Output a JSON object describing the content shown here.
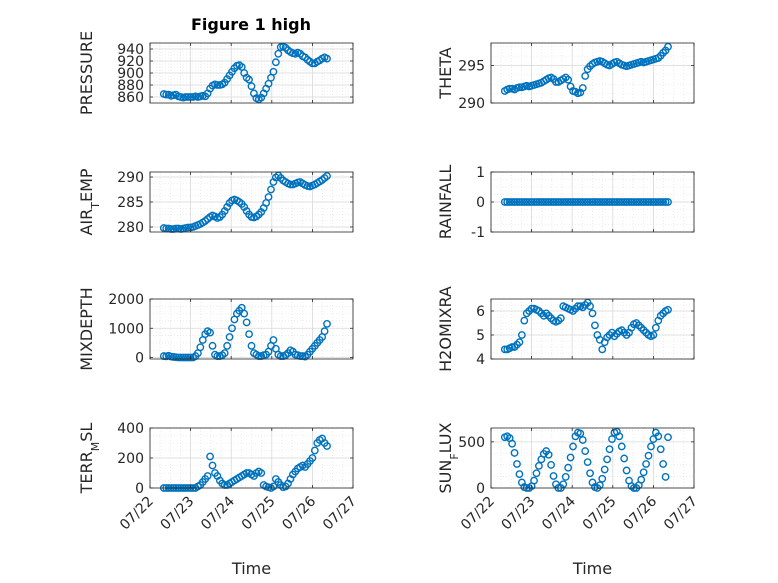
{
  "figure": {
    "title": "Figure 1 high",
    "marker_color": "#0072BD",
    "axis_color": "#262626",
    "grid_color": "#dfdfdf",
    "grid": true,
    "minor_grid": true
  },
  "chart_data": [
    {
      "type": "scatter",
      "name": "pressure",
      "ylabel": "PRESSURE",
      "ylim": [
        850,
        950
      ],
      "yticks": [
        860,
        880,
        900,
        920,
        940
      ],
      "title": "Figure 1 high",
      "xlim": [
        "07/22",
        "07/27"
      ],
      "xticks": [],
      "xlabel": "",
      "x": [
        0.34,
        0.4,
        0.46,
        0.52,
        0.58,
        0.64,
        0.7,
        0.76,
        0.82,
        0.88,
        0.94,
        1.0,
        1.06,
        1.12,
        1.18,
        1.24,
        1.3,
        1.36,
        1.42,
        1.48,
        1.54,
        1.6,
        1.66,
        1.72,
        1.78,
        1.84,
        1.9,
        1.96,
        2.02,
        2.08,
        2.14,
        2.2,
        2.26,
        2.32,
        2.38,
        2.44,
        2.5,
        2.56,
        2.62,
        2.68,
        2.74,
        2.8,
        2.86,
        2.92,
        2.98,
        3.04,
        3.1,
        3.16,
        3.22,
        3.28,
        3.34,
        3.4,
        3.46,
        3.52,
        3.58,
        3.64,
        3.7,
        3.76,
        3.82,
        3.88,
        3.94,
        4.0,
        4.06,
        4.12,
        4.18,
        4.24,
        4.3,
        4.36
      ],
      "y": [
        865,
        864,
        864,
        862,
        863,
        864,
        861,
        860,
        859,
        860,
        860,
        860,
        860,
        861,
        860,
        861,
        862,
        861,
        866,
        874,
        879,
        881,
        880,
        880,
        881,
        884,
        890,
        896,
        902,
        908,
        912,
        913,
        910,
        900,
        892,
        889,
        878,
        866,
        858,
        856,
        859,
        866,
        874,
        882,
        892,
        902,
        918,
        932,
        943,
        944,
        942,
        938,
        935,
        933,
        932,
        934,
        932,
        928,
        926,
        922,
        919,
        916,
        916,
        919,
        921,
        924,
        926,
        924
      ]
    },
    {
      "type": "scatter",
      "name": "theta",
      "ylabel": "THETA",
      "ylim": [
        290,
        298
      ],
      "yticks": [
        290,
        295
      ],
      "xlim": [
        "07/22",
        "07/27"
      ],
      "xticks": [],
      "xlabel": "",
      "x": [
        0.34,
        0.4,
        0.46,
        0.52,
        0.58,
        0.64,
        0.7,
        0.76,
        0.82,
        0.88,
        0.94,
        1.0,
        1.06,
        1.12,
        1.18,
        1.24,
        1.3,
        1.36,
        1.42,
        1.48,
        1.54,
        1.6,
        1.66,
        1.72,
        1.78,
        1.84,
        1.9,
        1.96,
        2.02,
        2.08,
        2.14,
        2.2,
        2.26,
        2.32,
        2.38,
        2.44,
        2.5,
        2.56,
        2.62,
        2.68,
        2.74,
        2.8,
        2.86,
        2.92,
        2.98,
        3.04,
        3.1,
        3.16,
        3.22,
        3.28,
        3.34,
        3.4,
        3.46,
        3.52,
        3.58,
        3.64,
        3.7,
        3.76,
        3.82,
        3.88,
        3.94,
        4.0,
        4.06,
        4.12,
        4.18,
        4.24,
        4.3,
        4.36
      ],
      "y": [
        291.6,
        291.8,
        291.9,
        291.9,
        291.8,
        292.0,
        292.1,
        292.1,
        292.2,
        292.3,
        292.2,
        292.3,
        292.4,
        292.5,
        292.6,
        292.7,
        292.9,
        293.1,
        293.3,
        293.4,
        293.2,
        292.8,
        292.8,
        293.0,
        293.2,
        293.4,
        293.1,
        292.2,
        291.6,
        291.5,
        291.3,
        291.4,
        292.0,
        293.6,
        294.5,
        294.9,
        295.2,
        295.4,
        295.5,
        295.6,
        295.5,
        295.3,
        295.1,
        295.0,
        295.2,
        295.4,
        295.5,
        295.3,
        295.1,
        295.0,
        294.9,
        295.0,
        295.1,
        295.2,
        295.3,
        295.4,
        295.5,
        295.4,
        295.5,
        295.6,
        295.7,
        295.8,
        295.9,
        296.0,
        296.3,
        296.7,
        297.0,
        297.5
      ]
    },
    {
      "type": "scatter",
      "name": "air_temp",
      "ylabel": "AIR_TEMP",
      "ylim": [
        279,
        291
      ],
      "yticks": [
        280,
        285,
        290
      ],
      "xlim": [
        "07/22",
        "07/27"
      ],
      "xticks": [],
      "xlabel": "",
      "x": [
        0.34,
        0.4,
        0.46,
        0.52,
        0.58,
        0.64,
        0.7,
        0.76,
        0.82,
        0.88,
        0.94,
        1.0,
        1.06,
        1.12,
        1.18,
        1.24,
        1.3,
        1.36,
        1.42,
        1.48,
        1.54,
        1.6,
        1.66,
        1.72,
        1.78,
        1.84,
        1.9,
        1.96,
        2.02,
        2.08,
        2.14,
        2.2,
        2.26,
        2.32,
        2.38,
        2.44,
        2.5,
        2.56,
        2.62,
        2.68,
        2.74,
        2.8,
        2.86,
        2.92,
        2.98,
        3.04,
        3.1,
        3.16,
        3.22,
        3.28,
        3.34,
        3.4,
        3.46,
        3.52,
        3.58,
        3.64,
        3.7,
        3.76,
        3.82,
        3.88,
        3.94,
        4.0,
        4.06,
        4.12,
        4.18,
        4.24,
        4.3,
        4.36
      ],
      "y": [
        279.8,
        279.7,
        279.7,
        279.6,
        279.6,
        279.7,
        279.7,
        279.6,
        279.7,
        279.8,
        279.9,
        279.9,
        280.0,
        280.2,
        280.4,
        280.6,
        280.9,
        281.2,
        281.6,
        282.0,
        282.3,
        282.1,
        281.8,
        282.0,
        282.5,
        283.2,
        284.0,
        284.8,
        285.3,
        285.5,
        285.3,
        285.0,
        284.6,
        284.0,
        283.2,
        282.5,
        282.0,
        281.9,
        282.1,
        282.5,
        283.0,
        283.8,
        284.8,
        286.0,
        287.5,
        289.0,
        289.9,
        290.3,
        289.8,
        289.3,
        289.0,
        288.7,
        288.5,
        288.5,
        288.7,
        288.9,
        289.0,
        288.7,
        288.4,
        288.2,
        288.1,
        288.3,
        288.5,
        288.8,
        289.1,
        289.4,
        289.8,
        290.2
      ]
    },
    {
      "type": "scatter",
      "name": "rainfall",
      "ylabel": "RAINFALL",
      "ylim": [
        -1,
        1
      ],
      "yticks": [
        -1,
        0,
        1
      ],
      "xlim": [
        "07/22",
        "07/27"
      ],
      "xticks": [],
      "xlabel": "",
      "x": [
        0.34,
        0.4,
        0.46,
        0.52,
        0.58,
        0.64,
        0.7,
        0.76,
        0.82,
        0.88,
        0.94,
        1.0,
        1.06,
        1.12,
        1.18,
        1.24,
        1.3,
        1.36,
        1.42,
        1.48,
        1.54,
        1.6,
        1.66,
        1.72,
        1.78,
        1.84,
        1.9,
        1.96,
        2.02,
        2.08,
        2.14,
        2.2,
        2.26,
        2.32,
        2.38,
        2.44,
        2.5,
        2.56,
        2.62,
        2.68,
        2.74,
        2.8,
        2.86,
        2.92,
        2.98,
        3.04,
        3.1,
        3.16,
        3.22,
        3.28,
        3.34,
        3.4,
        3.46,
        3.52,
        3.58,
        3.64,
        3.7,
        3.76,
        3.82,
        3.88,
        3.94,
        4.0,
        4.06,
        4.12,
        4.18,
        4.24,
        4.3,
        4.36
      ],
      "y": [
        0,
        0,
        0,
        0,
        0,
        0,
        0,
        0,
        0,
        0,
        0,
        0,
        0,
        0,
        0,
        0,
        0,
        0,
        0,
        0,
        0,
        0,
        0,
        0,
        0,
        0,
        0,
        0,
        0,
        0,
        0,
        0,
        0,
        0,
        0,
        0,
        0,
        0,
        0,
        0,
        0,
        0,
        0,
        0,
        0,
        0,
        0,
        0,
        0,
        0,
        0,
        0,
        0,
        0,
        0,
        0,
        0,
        0,
        0,
        0,
        0,
        0,
        0,
        0,
        0,
        0,
        0,
        0
      ]
    },
    {
      "type": "scatter",
      "name": "mixdepth",
      "ylabel": "MIXDEPTH",
      "ylim": [
        -50,
        2000
      ],
      "yticks": [
        0,
        1000,
        2000
      ],
      "xlim": [
        "07/22",
        "07/27"
      ],
      "xticks": [],
      "xlabel": "",
      "x": [
        0.34,
        0.4,
        0.46,
        0.52,
        0.58,
        0.64,
        0.7,
        0.76,
        0.82,
        0.88,
        0.94,
        1.0,
        1.06,
        1.12,
        1.18,
        1.24,
        1.3,
        1.36,
        1.42,
        1.48,
        1.54,
        1.6,
        1.66,
        1.72,
        1.78,
        1.84,
        1.9,
        1.96,
        2.02,
        2.08,
        2.14,
        2.2,
        2.26,
        2.32,
        2.38,
        2.44,
        2.5,
        2.56,
        2.62,
        2.68,
        2.74,
        2.8,
        2.86,
        2.92,
        2.98,
        3.04,
        3.1,
        3.16,
        3.22,
        3.28,
        3.34,
        3.4,
        3.46,
        3.52,
        3.58,
        3.64,
        3.7,
        3.76,
        3.82,
        3.88,
        3.94,
        4.0,
        4.06,
        4.12,
        4.18,
        4.24,
        4.3,
        4.36
      ],
      "y": [
        50,
        40,
        60,
        30,
        20,
        10,
        0,
        0,
        0,
        0,
        0,
        0,
        0,
        50,
        150,
        350,
        600,
        800,
        900,
        850,
        400,
        100,
        50,
        50,
        80,
        150,
        400,
        700,
        1000,
        1300,
        1500,
        1600,
        1700,
        1500,
        1200,
        800,
        400,
        150,
        100,
        50,
        50,
        80,
        100,
        200,
        400,
        600,
        300,
        100,
        50,
        50,
        80,
        150,
        250,
        200,
        100,
        80,
        50,
        50,
        30,
        100,
        200,
        300,
        400,
        500,
        600,
        700,
        900,
        1150
      ]
    },
    {
      "type": "scatter",
      "name": "h2omixra",
      "ylabel": "H2OMIXRA",
      "ylim": [
        4,
        6.5
      ],
      "yticks": [
        4,
        5,
        6
      ],
      "xlim": [
        "07/22",
        "07/27"
      ],
      "xticks": [],
      "xlabel": "",
      "x": [
        0.34,
        0.4,
        0.46,
        0.52,
        0.58,
        0.64,
        0.7,
        0.76,
        0.82,
        0.88,
        0.94,
        1.0,
        1.06,
        1.12,
        1.18,
        1.24,
        1.3,
        1.36,
        1.42,
        1.48,
        1.54,
        1.6,
        1.66,
        1.72,
        1.78,
        1.84,
        1.9,
        1.96,
        2.02,
        2.08,
        2.14,
        2.2,
        2.26,
        2.32,
        2.38,
        2.44,
        2.5,
        2.56,
        2.62,
        2.68,
        2.74,
        2.8,
        2.86,
        2.92,
        2.98,
        3.04,
        3.1,
        3.16,
        3.22,
        3.28,
        3.34,
        3.4,
        3.46,
        3.52,
        3.58,
        3.64,
        3.7,
        3.76,
        3.82,
        3.88,
        3.94,
        4.0,
        4.06,
        4.12,
        4.18,
        4.24,
        4.3,
        4.36
      ],
      "y": [
        4.4,
        4.4,
        4.45,
        4.5,
        4.5,
        4.6,
        4.7,
        5.0,
        5.6,
        5.9,
        6.0,
        6.1,
        6.1,
        6.05,
        6.0,
        5.9,
        5.8,
        5.9,
        5.8,
        5.7,
        5.6,
        5.55,
        5.6,
        5.7,
        6.2,
        6.15,
        6.1,
        6.05,
        6.0,
        6.1,
        6.2,
        6.2,
        6.15,
        6.25,
        6.35,
        6.2,
        5.9,
        5.4,
        5.0,
        4.8,
        4.4,
        4.7,
        4.9,
        5.0,
        5.1,
        4.95,
        5.05,
        5.15,
        5.2,
        5.1,
        5.0,
        5.1,
        5.3,
        5.45,
        5.5,
        5.4,
        5.3,
        5.2,
        5.1,
        5.0,
        4.95,
        5.0,
        5.3,
        5.6,
        5.8,
        5.9,
        6.0,
        6.05
      ]
    },
    {
      "type": "scatter",
      "name": "terr_msl",
      "ylabel": "TERR_MSL",
      "ylim": [
        0,
        400
      ],
      "yticks": [
        0,
        200,
        400
      ],
      "xlim": [
        "07/22",
        "07/27"
      ],
      "xticks": [
        "07/22",
        "07/23",
        "07/24",
        "07/25",
        "07/26",
        "07/27"
      ],
      "xlabel": "Time",
      "x": [
        0.34,
        0.4,
        0.46,
        0.52,
        0.58,
        0.64,
        0.7,
        0.76,
        0.82,
        0.88,
        0.94,
        1.0,
        1.06,
        1.12,
        1.18,
        1.24,
        1.3,
        1.36,
        1.42,
        1.48,
        1.54,
        1.6,
        1.66,
        1.72,
        1.78,
        1.84,
        1.9,
        1.96,
        2.02,
        2.08,
        2.14,
        2.2,
        2.26,
        2.32,
        2.38,
        2.44,
        2.5,
        2.56,
        2.62,
        2.68,
        2.74,
        2.8,
        2.86,
        2.92,
        2.98,
        3.04,
        3.1,
        3.16,
        3.22,
        3.28,
        3.34,
        3.4,
        3.46,
        3.52,
        3.58,
        3.64,
        3.7,
        3.76,
        3.82,
        3.88,
        3.94,
        4.0,
        4.06,
        4.12,
        4.18,
        4.24,
        4.3,
        4.36
      ],
      "y": [
        0,
        0,
        0,
        0,
        0,
        0,
        0,
        0,
        0,
        0,
        0,
        0,
        0,
        0,
        10,
        20,
        40,
        60,
        80,
        210,
        150,
        100,
        80,
        50,
        30,
        20,
        20,
        30,
        40,
        50,
        60,
        70,
        80,
        90,
        100,
        100,
        90,
        80,
        100,
        110,
        100,
        20,
        10,
        5,
        0,
        10,
        60,
        40,
        20,
        5,
        10,
        30,
        60,
        90,
        110,
        130,
        140,
        150,
        140,
        160,
        180,
        200,
        250,
        300,
        320,
        330,
        300,
        280
      ]
    },
    {
      "type": "scatter",
      "name": "sun_flux",
      "ylabel": "SUN_FLUX",
      "ylim": [
        0,
        650
      ],
      "yticks": [
        0,
        500
      ],
      "xlim": [
        "07/22",
        "07/27"
      ],
      "xticks": [
        "07/22",
        "07/23",
        "07/24",
        "07/25",
        "07/26",
        "07/27"
      ],
      "xlabel": "Time",
      "x": [
        0.34,
        0.4,
        0.46,
        0.52,
        0.58,
        0.64,
        0.7,
        0.76,
        0.82,
        0.88,
        0.94,
        1.0,
        1.06,
        1.12,
        1.18,
        1.24,
        1.3,
        1.36,
        1.42,
        1.48,
        1.54,
        1.6,
        1.66,
        1.72,
        1.78,
        1.84,
        1.9,
        1.96,
        2.02,
        2.08,
        2.14,
        2.2,
        2.26,
        2.32,
        2.38,
        2.44,
        2.5,
        2.56,
        2.62,
        2.68,
        2.74,
        2.8,
        2.86,
        2.92,
        2.98,
        3.04,
        3.1,
        3.16,
        3.22,
        3.28,
        3.34,
        3.4,
        3.46,
        3.52,
        3.58,
        3.64,
        3.7,
        3.76,
        3.82,
        3.88,
        3.94,
        4.0,
        4.06,
        4.12,
        4.18,
        4.24,
        4.3,
        4.36
      ],
      "y": [
        550,
        560,
        540,
        480,
        380,
        260,
        150,
        60,
        10,
        0,
        0,
        20,
        80,
        160,
        240,
        310,
        370,
        400,
        360,
        250,
        130,
        40,
        0,
        0,
        40,
        120,
        220,
        330,
        450,
        560,
        600,
        590,
        520,
        400,
        280,
        160,
        60,
        10,
        0,
        30,
        100,
        200,
        310,
        420,
        530,
        600,
        610,
        560,
        450,
        320,
        190,
        80,
        20,
        0,
        0,
        30,
        90,
        170,
        260,
        350,
        450,
        530,
        600,
        560,
        420,
        260,
        120,
        550
      ]
    }
  ]
}
